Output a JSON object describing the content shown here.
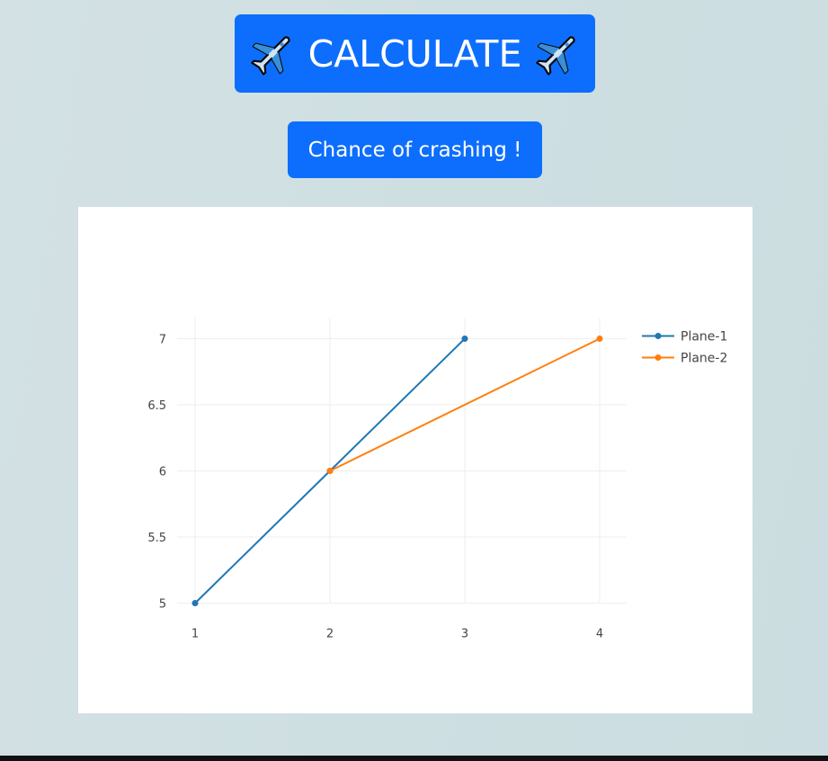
{
  "buttons": {
    "calculate_label": "CALCULATE",
    "calculate_icon": "airplane-icon",
    "crash_label": "Chance of crashing !"
  },
  "colors": {
    "button": "#0d6efd",
    "plane1": "#1f77b4",
    "plane2": "#ff7f0e"
  },
  "chart_data": {
    "type": "line",
    "title": "",
    "xlabel": "",
    "ylabel": "",
    "xlim": [
      1,
      4
    ],
    "ylim": [
      5,
      7
    ],
    "x_ticks": [
      "1",
      "2",
      "3",
      "4"
    ],
    "y_ticks": [
      "5",
      "5.5",
      "6",
      "6.5",
      "7"
    ],
    "grid": true,
    "legend_position": "top-right",
    "series": [
      {
        "name": "Plane-1",
        "color": "#1f77b4",
        "x": [
          1,
          2,
          3
        ],
        "y": [
          5,
          6,
          7
        ]
      },
      {
        "name": "Plane-2",
        "color": "#ff7f0e",
        "x": [
          2,
          4
        ],
        "y": [
          6,
          7
        ]
      }
    ]
  }
}
